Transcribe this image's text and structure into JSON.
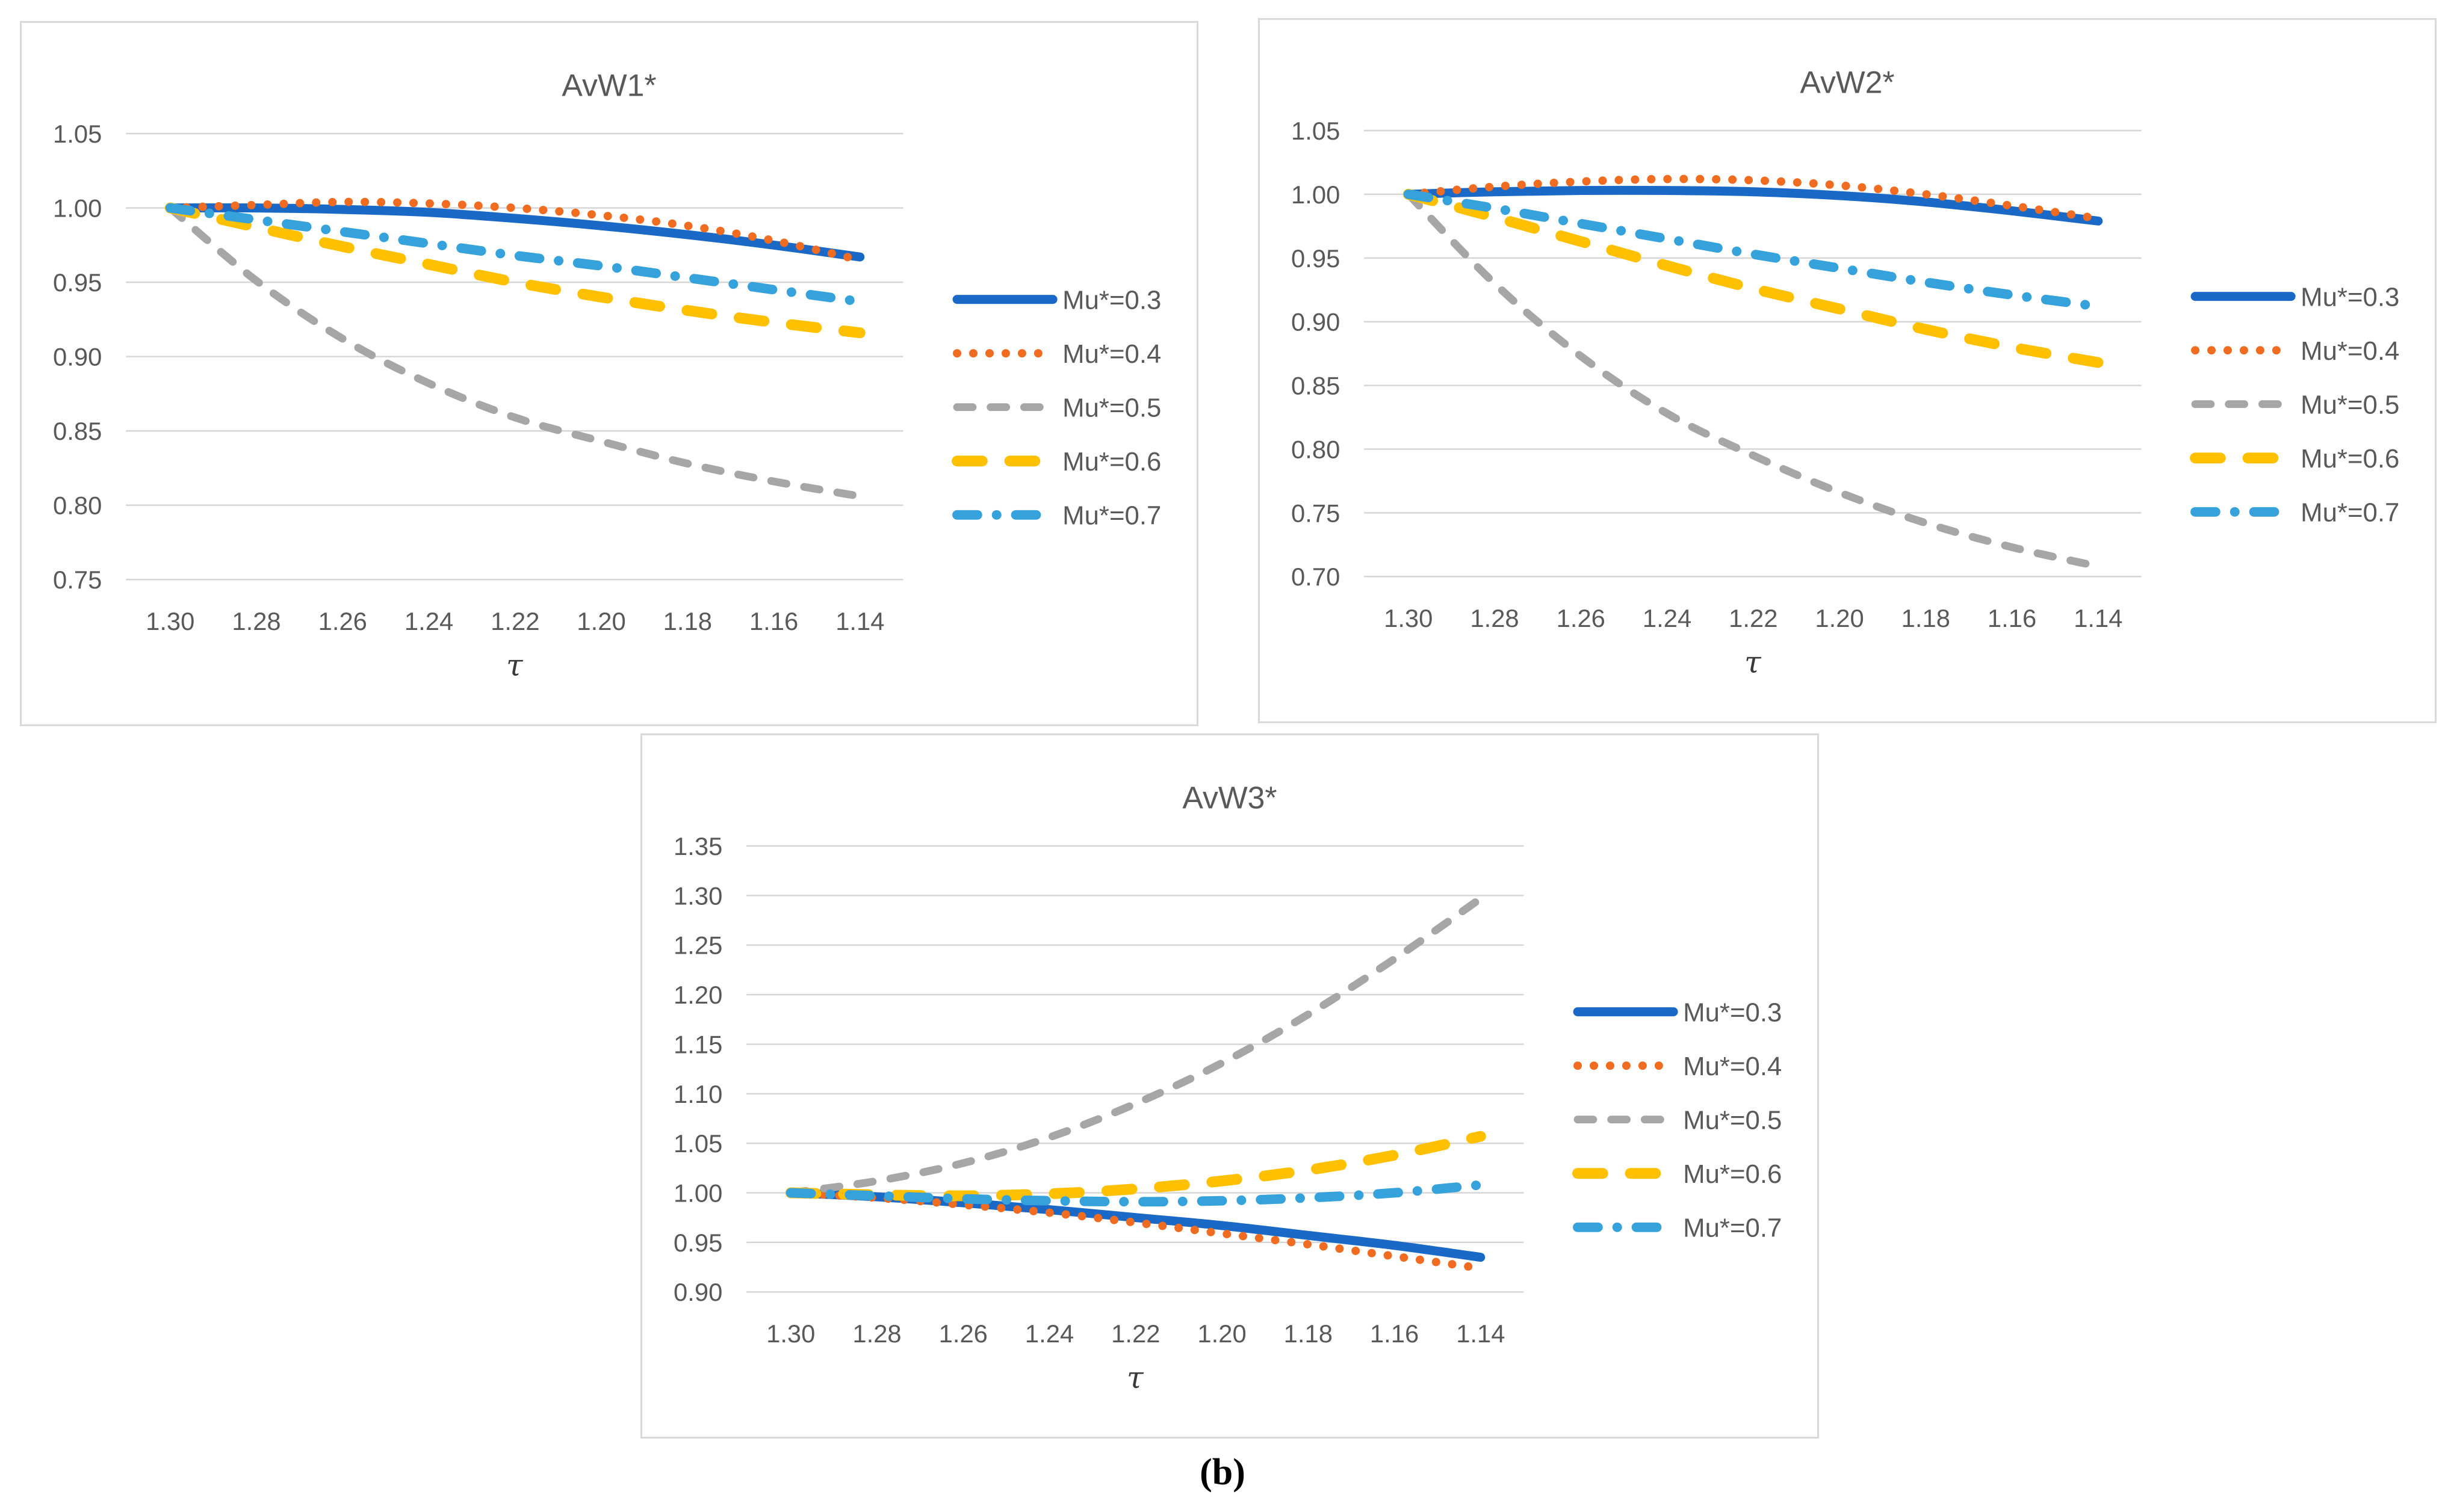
{
  "figure_label": "(b)",
  "colors": {
    "series_blue": "#1B69C7",
    "series_orange": "#F06C20",
    "series_gray": "#A6A6A6",
    "series_yellow": "#FFC000",
    "series_lightblue": "#36A2DB",
    "axis_text": "#595959",
    "gridline": "#D6D6D6",
    "panel_border": "#D9D9D9"
  },
  "chart_data": [
    {
      "type": "line",
      "title": "AvW1*",
      "xlabel": "τ",
      "x_axis_reversed": true,
      "x_values": [
        1.3,
        1.28,
        1.26,
        1.24,
        1.22,
        1.2,
        1.18,
        1.16,
        1.14
      ],
      "x_tick_labels": [
        "1.30",
        "1.28",
        "1.26",
        "1.24",
        "1.22",
        "1.20",
        "1.18",
        "1.16",
        "1.14"
      ],
      "y_ticks": [
        "1.05",
        "1.00",
        "0.95",
        "0.90",
        "0.85",
        "0.80",
        "0.75"
      ],
      "ylim": [
        0.75,
        1.05
      ],
      "grid": "horizontal",
      "legend_position": "right",
      "series": [
        {
          "name": "Mu*=0.3",
          "style": "solid",
          "color": "series_blue",
          "values": [
            1.0,
            1.0,
            0.999,
            0.997,
            0.993,
            0.988,
            0.982,
            0.975,
            0.967
          ]
        },
        {
          "name": "Mu*=0.4",
          "style": "dot",
          "color": "series_orange",
          "values": [
            1.0,
            1.002,
            1.004,
            1.003,
            1.0,
            0.995,
            0.988,
            0.978,
            0.965
          ]
        },
        {
          "name": "Mu*=0.5",
          "style": "dash",
          "color": "series_gray",
          "values": [
            1.0,
            0.951,
            0.912,
            0.882,
            0.859,
            0.843,
            0.828,
            0.816,
            0.806
          ]
        },
        {
          "name": "Mu*=0.6",
          "style": "longdash",
          "color": "series_yellow",
          "values": [
            1.0,
            0.987,
            0.974,
            0.962,
            0.95,
            0.94,
            0.931,
            0.923,
            0.916
          ]
        },
        {
          "name": "Mu*=0.7",
          "style": "dashdot",
          "color": "series_lightblue",
          "values": [
            1.0,
            0.992,
            0.984,
            0.976,
            0.968,
            0.961,
            0.953,
            0.945,
            0.937
          ]
        }
      ]
    },
    {
      "type": "line",
      "title": "AvW2*",
      "xlabel": "τ",
      "x_axis_reversed": true,
      "x_values": [
        1.3,
        1.28,
        1.26,
        1.24,
        1.22,
        1.2,
        1.18,
        1.16,
        1.14
      ],
      "x_tick_labels": [
        "1.30",
        "1.28",
        "1.26",
        "1.24",
        "1.22",
        "1.20",
        "1.18",
        "1.16",
        "1.14"
      ],
      "y_ticks": [
        "1.05",
        "1.00",
        "0.95",
        "0.90",
        "0.85",
        "0.80",
        "0.75",
        "0.70"
      ],
      "ylim": [
        0.7,
        1.05
      ],
      "grid": "horizontal",
      "legend_position": "right",
      "series": [
        {
          "name": "Mu*=0.3",
          "style": "solid",
          "color": "series_blue",
          "values": [
            1.0,
            1.002,
            1.003,
            1.003,
            1.002,
            0.999,
            0.994,
            0.987,
            0.979
          ]
        },
        {
          "name": "Mu*=0.4",
          "style": "dot",
          "color": "series_orange",
          "values": [
            1.0,
            1.006,
            1.01,
            1.012,
            1.011,
            1.007,
            1.0,
            0.991,
            0.981
          ]
        },
        {
          "name": "Mu*=0.5",
          "style": "dash",
          "color": "series_gray",
          "values": [
            1.0,
            0.93,
            0.873,
            0.828,
            0.795,
            0.766,
            0.742,
            0.723,
            0.708
          ]
        },
        {
          "name": "Mu*=0.6",
          "style": "longdash",
          "color": "series_yellow",
          "values": [
            1.0,
            0.982,
            0.963,
            0.944,
            0.926,
            0.91,
            0.894,
            0.88,
            0.868
          ]
        },
        {
          "name": "Mu*=0.7",
          "style": "dashdot",
          "color": "series_lightblue",
          "values": [
            1.0,
            0.989,
            0.977,
            0.965,
            0.953,
            0.942,
            0.931,
            0.921,
            0.912
          ]
        }
      ]
    },
    {
      "type": "line",
      "title": "AvW3*",
      "xlabel": "τ",
      "x_axis_reversed": true,
      "x_values": [
        1.3,
        1.28,
        1.26,
        1.24,
        1.22,
        1.2,
        1.18,
        1.16,
        1.14
      ],
      "x_tick_labels": [
        "1.30",
        "1.28",
        "1.26",
        "1.24",
        "1.22",
        "1.20",
        "1.18",
        "1.16",
        "1.14"
      ],
      "y_ticks": [
        "1.35",
        "1.30",
        "1.25",
        "1.20",
        "1.15",
        "1.10",
        "1.05",
        "1.00",
        "0.95",
        "0.90"
      ],
      "ylim": [
        0.9,
        1.35
      ],
      "grid": "horizontal",
      "legend_position": "right",
      "series": [
        {
          "name": "Mu*=0.3",
          "style": "solid",
          "color": "series_blue",
          "values": [
            1.0,
            0.996,
            0.99,
            0.983,
            0.975,
            0.967,
            0.957,
            0.947,
            0.935
          ]
        },
        {
          "name": "Mu*=0.4",
          "style": "dot",
          "color": "series_orange",
          "values": [
            1.0,
            0.995,
            0.988,
            0.98,
            0.97,
            0.959,
            0.948,
            0.936,
            0.924
          ]
        },
        {
          "name": "Mu*=0.5",
          "style": "dash",
          "color": "series_gray",
          "values": [
            1.0,
            1.012,
            1.03,
            1.056,
            1.09,
            1.131,
            1.18,
            1.236,
            1.297
          ]
        },
        {
          "name": "Mu*=0.6",
          "style": "longdash",
          "color": "series_yellow",
          "values": [
            1.0,
            0.998,
            0.997,
            0.999,
            1.004,
            1.012,
            1.023,
            1.038,
            1.057
          ]
        },
        {
          "name": "Mu*=0.7",
          "style": "dashdot",
          "color": "series_lightblue",
          "values": [
            1.0,
            0.997,
            0.994,
            0.992,
            0.991,
            0.992,
            0.995,
            1.0,
            1.008
          ]
        }
      ]
    }
  ]
}
